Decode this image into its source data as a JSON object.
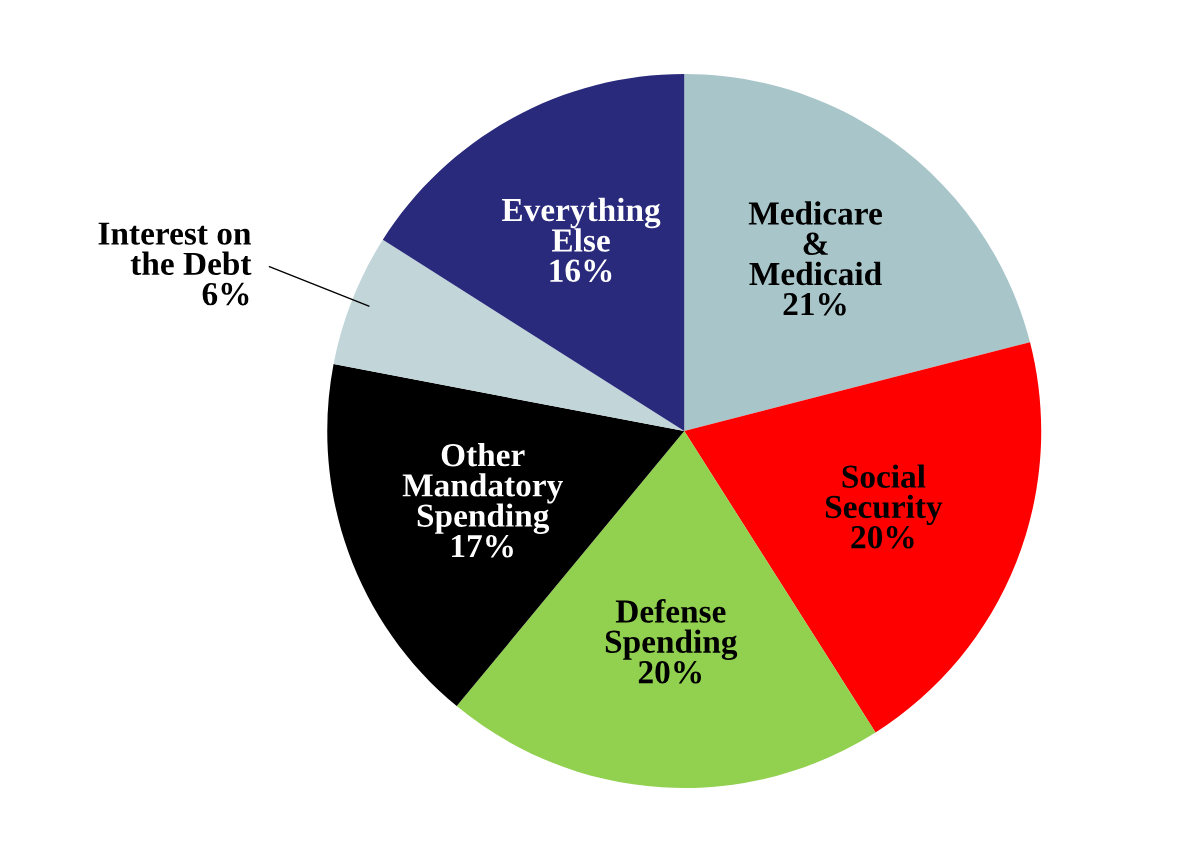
{
  "chart_data": {
    "type": "pie",
    "categories": [
      "Medicare\n&\nMedicaid",
      "Social\nSecurity",
      "Defense\nSpending",
      "Other\nMandatory\nSpending",
      "Interest on\nthe Debt",
      "Everything\nElse"
    ],
    "values": [
      21,
      20,
      20,
      17,
      6,
      16
    ],
    "colors": [
      "#a8c6ca",
      "#ff0000",
      "#92d050",
      "#000000",
      "#c2d6da",
      "#2a2a7c"
    ],
    "value_labels": [
      "21%",
      "20%",
      "20%",
      "17%",
      "6%",
      "16%"
    ]
  }
}
